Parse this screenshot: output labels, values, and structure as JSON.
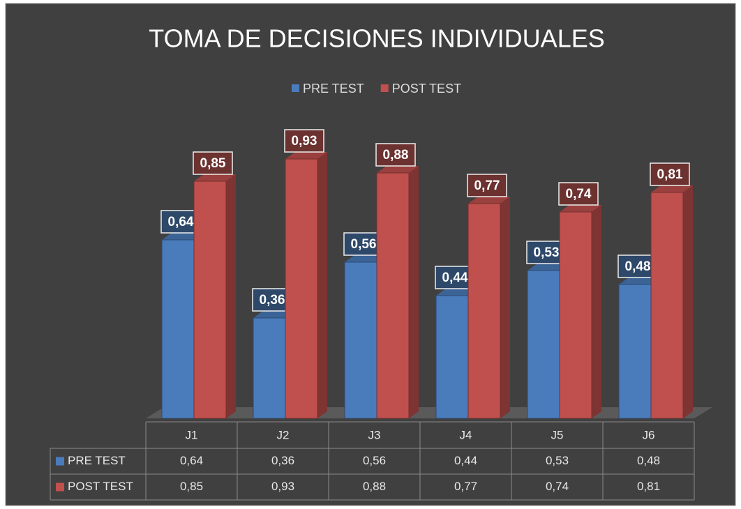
{
  "chart_data": {
    "type": "bar3d",
    "title": "TOMA DE DECISIONES INDIVIDUALES",
    "categories": [
      "J1",
      "J2",
      "J3",
      "J4",
      "J5",
      "J6"
    ],
    "series": [
      {
        "name": "PRE TEST",
        "color": "#4a7cbc",
        "values": [
          0.64,
          0.36,
          0.56,
          0.44,
          0.53,
          0.48
        ],
        "value_labels": [
          "0,64",
          "0,36",
          "0,56",
          "0,44",
          "0,53",
          "0,48"
        ]
      },
      {
        "name": "POST TEST",
        "color": "#c0504d",
        "values": [
          0.85,
          0.93,
          0.88,
          0.77,
          0.74,
          0.81
        ],
        "value_labels": [
          "0,85",
          "0,93",
          "0,88",
          "0,77",
          "0,74",
          "0,81"
        ]
      }
    ],
    "ylim": [
      0,
      1
    ],
    "legend": "top",
    "data_table": true
  }
}
